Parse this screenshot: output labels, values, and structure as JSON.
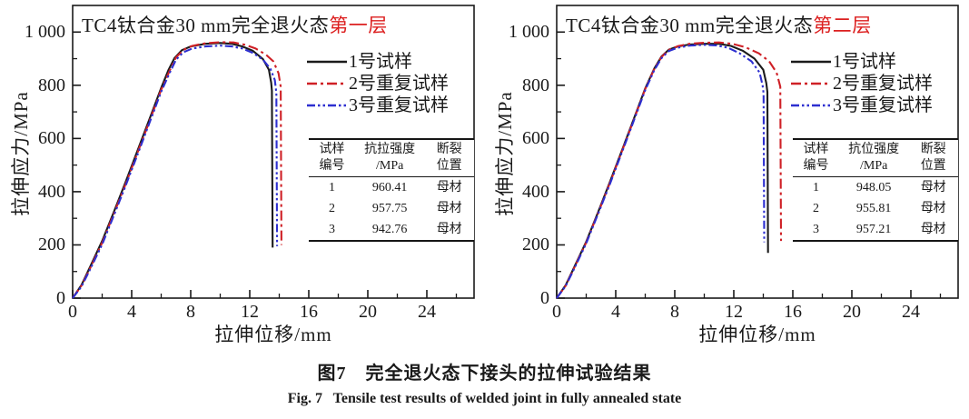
{
  "figure": {
    "caption_zh": "图7　完全退火态下接头的拉伸试验结果",
    "caption_en": "Fig. 7   Tensile test results of welded joint in fully annealed state"
  },
  "colors": {
    "series1": "#1b1b1b",
    "series2": "#cf2026",
    "series3": "#2d2fd0",
    "title_highlight": "#dc1f1f",
    "axis": "#1a1a1a"
  },
  "chart_data": [
    {
      "type": "line",
      "title_main": "TC4钛合金30 mm完全退火态",
      "title_highlight": "第一层",
      "xlabel": "拉伸位移/mm",
      "ylabel": "拉伸应力/MPa",
      "xlim": [
        0,
        27.2
      ],
      "ylim": [
        0,
        1100
      ],
      "xticks": [
        0,
        4,
        8,
        12,
        16,
        20,
        24
      ],
      "xminor_step": 2,
      "yticks": [
        0,
        200,
        400,
        600,
        800,
        1000
      ],
      "ytick_labels": [
        "0",
        "200",
        "400",
        "600",
        "800",
        "1 000"
      ],
      "yminor_step": 100,
      "grid": false,
      "legend_position": "inside-right",
      "series": [
        {
          "name": "1号试样",
          "color": "series1",
          "dash": "solid",
          "points": [
            [
              0,
              0
            ],
            [
              0.6,
              50
            ],
            [
              1.2,
              120
            ],
            [
              2,
              215
            ],
            [
              2.8,
              325
            ],
            [
              3.6,
              438
            ],
            [
              4.4,
              555
            ],
            [
              5.2,
              672
            ],
            [
              6,
              790
            ],
            [
              6.5,
              858
            ],
            [
              6.9,
              902
            ],
            [
              7.4,
              932
            ],
            [
              8,
              946
            ],
            [
              9,
              956
            ],
            [
              10,
              959
            ],
            [
              10.8,
              956
            ],
            [
              11.5,
              946
            ],
            [
              12.2,
              930
            ],
            [
              12.9,
              898
            ],
            [
              13.3,
              858
            ],
            [
              13.45,
              810
            ],
            [
              13.5,
              780
            ],
            [
              13.55,
              190
            ]
          ]
        },
        {
          "name": "2号重复试样",
          "color": "series2",
          "dash": "dashdot",
          "points": [
            [
              0,
              0
            ],
            [
              0.6,
              47
            ],
            [
              1.2,
              114
            ],
            [
              2,
              208
            ],
            [
              2.8,
              318
            ],
            [
              3.6,
              430
            ],
            [
              4.4,
              547
            ],
            [
              5.2,
              664
            ],
            [
              6,
              783
            ],
            [
              6.6,
              858
            ],
            [
              7,
              905
            ],
            [
              7.5,
              933
            ],
            [
              8.1,
              948
            ],
            [
              9,
              958
            ],
            [
              10,
              962
            ],
            [
              10.9,
              961
            ],
            [
              11.7,
              952
            ],
            [
              12.4,
              938
            ],
            [
              13.1,
              915
            ],
            [
              13.6,
              890
            ],
            [
              13.95,
              845
            ],
            [
              14.1,
              795
            ],
            [
              14.15,
              200
            ]
          ]
        },
        {
          "name": "3号重复试样",
          "color": "series3",
          "dash": "dashdotdot",
          "points": [
            [
              0,
              0
            ],
            [
              0.6,
              44
            ],
            [
              1.2,
              110
            ],
            [
              2,
              202
            ],
            [
              2.8,
              312
            ],
            [
              3.6,
              424
            ],
            [
              4.4,
              540
            ],
            [
              5.2,
              658
            ],
            [
              6,
              776
            ],
            [
              6.6,
              850
            ],
            [
              7,
              896
            ],
            [
              7.5,
              924
            ],
            [
              8.1,
              938
            ],
            [
              9,
              946
            ],
            [
              10,
              949
            ],
            [
              10.8,
              946
            ],
            [
              11.5,
              938
            ],
            [
              12.2,
              922
            ],
            [
              12.9,
              896
            ],
            [
              13.4,
              862
            ],
            [
              13.7,
              820
            ],
            [
              13.8,
              772
            ],
            [
              13.85,
              195
            ]
          ]
        }
      ],
      "table": {
        "header": [
          [
            "试样",
            "编号"
          ],
          [
            "抗拉强度",
            "/MPa"
          ],
          [
            "断裂",
            "位置"
          ]
        ],
        "rows": [
          [
            "1",
            "960.41",
            "母材"
          ],
          [
            "2",
            "957.75",
            "母材"
          ],
          [
            "3",
            "942.76",
            "母材"
          ]
        ]
      }
    },
    {
      "type": "line",
      "title_main": "TC4钛合金30 mm完全退火态",
      "title_highlight": "第二层",
      "xlabel": "拉伸位移/mm",
      "ylabel": "拉伸应力/MPa",
      "xlim": [
        0,
        27.2
      ],
      "ylim": [
        0,
        1100
      ],
      "xticks": [
        0,
        4,
        8,
        12,
        16,
        20,
        24
      ],
      "xminor_step": 2,
      "yticks": [
        0,
        200,
        400,
        600,
        800,
        1000
      ],
      "ytick_labels": [
        "0",
        "200",
        "400",
        "600",
        "800",
        "1 000"
      ],
      "yminor_step": 100,
      "grid": false,
      "legend_position": "inside-right",
      "series": [
        {
          "name": "1号试样",
          "color": "series1",
          "dash": "solid",
          "points": [
            [
              0,
              0
            ],
            [
              0.6,
              48
            ],
            [
              1.2,
              118
            ],
            [
              2,
              212
            ],
            [
              2.8,
              322
            ],
            [
              3.6,
              436
            ],
            [
              4.4,
              552
            ],
            [
              5.2,
              670
            ],
            [
              6,
              788
            ],
            [
              6.6,
              862
            ],
            [
              7.1,
              908
            ],
            [
              7.6,
              934
            ],
            [
              8.2,
              946
            ],
            [
              9,
              953
            ],
            [
              10,
              956
            ],
            [
              11,
              956
            ],
            [
              11.8,
              948
            ],
            [
              12.6,
              930
            ],
            [
              13.4,
              900
            ],
            [
              14,
              858
            ],
            [
              14.2,
              808
            ],
            [
              14.28,
              775
            ],
            [
              14.32,
              170
            ]
          ]
        },
        {
          "name": "2号重复试样",
          "color": "series2",
          "dash": "dashdot",
          "points": [
            [
              0,
              0
            ],
            [
              0.6,
              46
            ],
            [
              1.2,
              115
            ],
            [
              2,
              209
            ],
            [
              2.8,
              319
            ],
            [
              3.6,
              432
            ],
            [
              4.4,
              549
            ],
            [
              5.2,
              667
            ],
            [
              6,
              786
            ],
            [
              6.6,
              860
            ],
            [
              7.1,
              906
            ],
            [
              7.6,
              933
            ],
            [
              8.2,
              947
            ],
            [
              9,
              956
            ],
            [
              10,
              960
            ],
            [
              11,
              961
            ],
            [
              11.9,
              956
            ],
            [
              12.8,
              943
            ],
            [
              13.7,
              920
            ],
            [
              14.4,
              890
            ],
            [
              14.9,
              848
            ],
            [
              15.15,
              795
            ],
            [
              15.2,
              215
            ]
          ]
        },
        {
          "name": "3号重复试样",
          "color": "series3",
          "dash": "dashdotdot",
          "points": [
            [
              0,
              0
            ],
            [
              0.6,
              45
            ],
            [
              1.2,
              112
            ],
            [
              2,
              206
            ],
            [
              2.8,
              316
            ],
            [
              3.6,
              428
            ],
            [
              4.4,
              545
            ],
            [
              5.2,
              663
            ],
            [
              6,
              782
            ],
            [
              6.6,
              856
            ],
            [
              7.1,
              902
            ],
            [
              7.6,
              929
            ],
            [
              8.2,
              941
            ],
            [
              9,
              949
            ],
            [
              10,
              952
            ],
            [
              10.8,
              950
            ],
            [
              11.6,
              941
            ],
            [
              12.4,
              920
            ],
            [
              13.2,
              890
            ],
            [
              13.75,
              848
            ],
            [
              13.95,
              800
            ],
            [
              14.02,
              770
            ],
            [
              14.06,
              210
            ]
          ]
        }
      ],
      "table": {
        "header": [
          [
            "试样",
            "编号"
          ],
          [
            "抗位强度",
            "/MPa"
          ],
          [
            "断裂",
            "位置"
          ]
        ],
        "rows": [
          [
            "1",
            "948.05",
            "母材"
          ],
          [
            "2",
            "955.81",
            "母材"
          ],
          [
            "3",
            "957.21",
            "母材"
          ]
        ]
      }
    }
  ]
}
